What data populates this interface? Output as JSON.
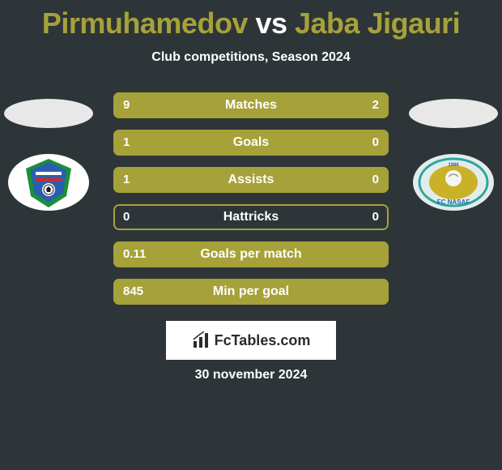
{
  "title": {
    "player1": "Pirmuhamedov",
    "vs": " vs ",
    "player2": "Jaba Jigauri",
    "color1": "#a6a139",
    "color_vs": "#ffffff",
    "color2": "#a6a139"
  },
  "subtitle": "Club competitions, Season 2024",
  "flag_left_color": "#e8e8e8",
  "flag_right_color": "#e8e8e8",
  "club_left": {
    "bg": "#ffffff",
    "accent1": "#1b8f3a",
    "accent2": "#2a5fb0",
    "accent3": "#cc2b2b"
  },
  "club_right": {
    "bg": "#e4eceb",
    "ring": "#2aa6a0",
    "inner": "#c9b128",
    "text_color": "#2a65a8"
  },
  "stats": {
    "bar_bg": "#2e3538",
    "fill_color": "#a6a139",
    "border_color": "#a6a139",
    "rows": [
      {
        "label": "Matches",
        "left_val": "9",
        "right_val": "2",
        "left_pct": 81,
        "right_pct": 19
      },
      {
        "label": "Goals",
        "left_val": "1",
        "right_val": "0",
        "left_pct": 100,
        "right_pct": 0
      },
      {
        "label": "Assists",
        "left_val": "1",
        "right_val": "0",
        "left_pct": 100,
        "right_pct": 0
      },
      {
        "label": "Hattricks",
        "left_val": "0",
        "right_val": "0",
        "left_pct": 0,
        "right_pct": 0
      },
      {
        "label": "Goals per match",
        "left_val": "0.11",
        "right_val": "",
        "left_pct": 100,
        "right_pct": 0
      },
      {
        "label": "Min per goal",
        "left_val": "845",
        "right_val": "",
        "left_pct": 100,
        "right_pct": 0
      }
    ]
  },
  "fctables": {
    "label": "FcTables.com",
    "icon_color": "#2b2b2b"
  },
  "date": "30 november 2024"
}
